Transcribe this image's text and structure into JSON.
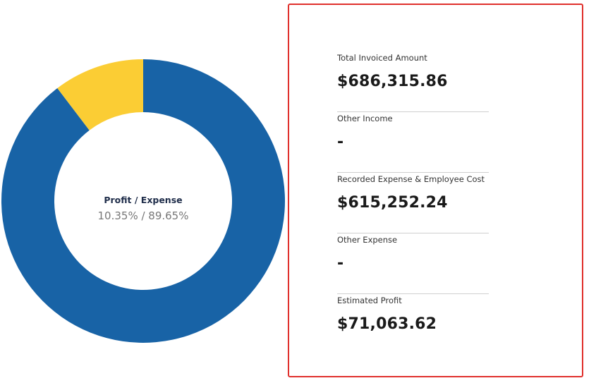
{
  "chart_data": {
    "type": "pie",
    "variant": "donut",
    "center_title": "Profit / Expense",
    "center_value": "10.35% / 89.65%",
    "slices": [
      {
        "name": "Profit",
        "value": 10.35,
        "color": "#fbcd34"
      },
      {
        "name": "Expense",
        "value": 89.65,
        "color": "#1863a6"
      }
    ],
    "legend": "none"
  },
  "summary": {
    "items": [
      {
        "label": "Total Invoiced Amount",
        "value": "$686,315.86"
      },
      {
        "label": "Other Income",
        "value": "-"
      },
      {
        "label": "Recorded Expense & Employee Cost",
        "value": "$615,252.24"
      },
      {
        "label": "Other Expense",
        "value": "-"
      },
      {
        "label": "Estimated Profit",
        "value": "$71,063.62"
      }
    ],
    "border_color": "#e0302c"
  }
}
